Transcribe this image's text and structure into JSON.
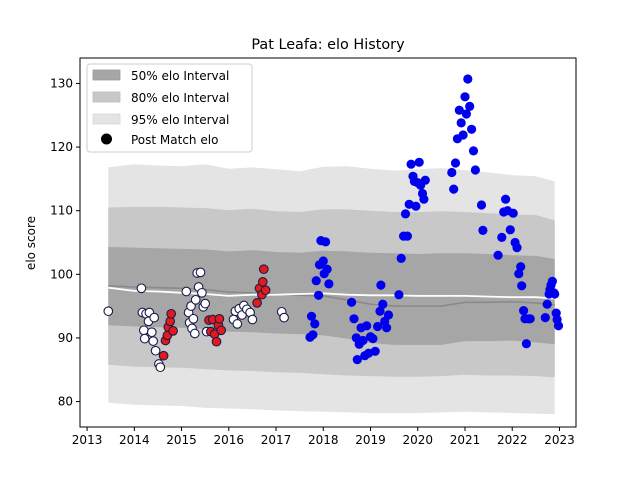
{
  "chart_data": {
    "type": "scatter",
    "title": "Pat Leafa: elo History",
    "xlabel": "",
    "ylabel": "elo score",
    "xlim": [
      2012.85,
      2023.35
    ],
    "ylim": [
      76,
      134
    ],
    "x_ticks": [
      2013,
      2014,
      2015,
      2016,
      2017,
      2018,
      2019,
      2020,
      2021,
      2022,
      2023
    ],
    "y_ticks": [
      80,
      90,
      100,
      110,
      120,
      130
    ],
    "grid": false,
    "legend": {
      "placement": "top-left",
      "entries": [
        "50% elo Interval",
        "80% elo Interval",
        "95% elo Interval",
        "Post Match elo"
      ]
    },
    "colors": {
      "band50": "#a6a6a6",
      "band80": "#c8c8c8",
      "band95": "#e4e4e4",
      "median_line": "#8a8a8a",
      "mean_line": "#ffffff",
      "point_white": "#ffffff",
      "point_red": "#e31a1c",
      "point_blue": "#0000ee",
      "point_edge_dark": "#1a1a4a"
    },
    "bands": {
      "x": [
        2013.45,
        2014.0,
        2014.5,
        2015.0,
        2015.5,
        2016.0,
        2016.5,
        2017.0,
        2017.5,
        2018.0,
        2018.5,
        2019.0,
        2019.5,
        2020.0,
        2020.5,
        2021.0,
        2021.5,
        2022.0,
        2022.5,
        2022.9
      ],
      "p95_high": [
        116.8,
        117.3,
        117.1,
        117.0,
        117.3,
        116.6,
        116.8,
        116.5,
        116.2,
        116.9,
        117.0,
        116.6,
        116.3,
        116.5,
        116.7,
        116.4,
        116.0,
        115.6,
        115.4,
        114.6
      ],
      "p80_high": [
        110.5,
        110.6,
        110.6,
        110.5,
        110.4,
        110.1,
        110.3,
        109.9,
        109.8,
        110.2,
        110.2,
        110.0,
        109.8,
        109.8,
        109.9,
        109.8,
        109.6,
        109.4,
        109.3,
        108.5
      ],
      "p50_high": [
        104.3,
        104.2,
        104.1,
        104.0,
        103.9,
        103.6,
        103.8,
        103.5,
        103.4,
        103.7,
        103.6,
        103.4,
        103.3,
        103.2,
        103.3,
        103.3,
        103.2,
        103.0,
        102.9,
        102.4
      ],
      "median": [
        98.2,
        98.0,
        97.9,
        97.8,
        97.6,
        97.2,
        97.1,
        96.9,
        96.7,
        96.6,
        96.0,
        95.3,
        95.0,
        95.0,
        95.0,
        95.6,
        95.6,
        95.7,
        95.5,
        95.2
      ],
      "mean": [
        97.9,
        97.4,
        97.3,
        97.1,
        96.9,
        96.6,
        96.8,
        96.8,
        96.9,
        97.0,
        96.8,
        96.7,
        96.7,
        96.6,
        96.6,
        96.6,
        96.5,
        96.4,
        96.4,
        96.2
      ],
      "p50_low": [
        92.0,
        91.8,
        91.7,
        91.6,
        91.4,
        91.0,
        90.9,
        90.7,
        90.6,
        90.4,
        89.9,
        89.2,
        88.9,
        88.9,
        88.9,
        89.5,
        89.5,
        89.6,
        89.3,
        89.0
      ],
      "p80_low": [
        85.8,
        85.5,
        85.4,
        85.3,
        85.1,
        84.9,
        84.8,
        84.6,
        84.5,
        84.3,
        84.1,
        84.0,
        83.9,
        83.9,
        84.0,
        84.2,
        84.1,
        84.1,
        84.0,
        83.8
      ],
      "p95_low": [
        79.8,
        79.5,
        79.4,
        79.3,
        79.0,
        78.9,
        78.8,
        78.6,
        78.5,
        78.4,
        78.3,
        78.2,
        78.2,
        78.2,
        78.3,
        78.4,
        78.3,
        78.2,
        78.1,
        78.0
      ]
    },
    "series": [
      {
        "color": "white",
        "points": [
          [
            2013.45,
            94.2
          ],
          [
            2014.15,
            97.8
          ],
          [
            2014.17,
            94.0
          ],
          [
            2014.2,
            91.2
          ],
          [
            2014.22,
            89.9
          ],
          [
            2014.25,
            93.8
          ],
          [
            2014.3,
            92.6
          ],
          [
            2014.32,
            94.0
          ],
          [
            2014.37,
            90.9
          ],
          [
            2014.4,
            89.5
          ],
          [
            2014.42,
            93.2
          ],
          [
            2014.45,
            88.0
          ],
          [
            2014.52,
            85.9
          ],
          [
            2014.55,
            85.4
          ],
          [
            2015.1,
            97.3
          ],
          [
            2015.15,
            94.0
          ],
          [
            2015.17,
            92.4
          ],
          [
            2015.2,
            95.0
          ],
          [
            2015.22,
            91.5
          ],
          [
            2015.25,
            93.0
          ],
          [
            2015.28,
            90.7
          ],
          [
            2015.3,
            96.0
          ],
          [
            2015.33,
            100.2
          ],
          [
            2015.36,
            98.0
          ],
          [
            2015.4,
            100.3
          ],
          [
            2015.43,
            97.1
          ],
          [
            2015.46,
            94.9
          ],
          [
            2015.5,
            95.4
          ],
          [
            2015.53,
            91.0
          ],
          [
            2016.1,
            92.9
          ],
          [
            2016.14,
            94.2
          ],
          [
            2016.18,
            92.2
          ],
          [
            2016.22,
            94.6
          ],
          [
            2016.28,
            93.6
          ],
          [
            2016.32,
            95.1
          ],
          [
            2016.38,
            94.5
          ],
          [
            2016.45,
            94.0
          ],
          [
            2016.5,
            92.9
          ],
          [
            2017.12,
            94.1
          ],
          [
            2017.17,
            93.2
          ]
        ]
      },
      {
        "color": "red",
        "points": [
          [
            2014.62,
            87.2
          ],
          [
            2014.66,
            89.6
          ],
          [
            2014.7,
            90.4
          ],
          [
            2014.72,
            91.7
          ],
          [
            2014.76,
            92.6
          ],
          [
            2014.78,
            93.8
          ],
          [
            2014.82,
            91.1
          ],
          [
            2015.58,
            92.8
          ],
          [
            2015.62,
            91.0
          ],
          [
            2015.66,
            92.9
          ],
          [
            2015.7,
            90.6
          ],
          [
            2015.74,
            89.4
          ],
          [
            2015.78,
            92.0
          ],
          [
            2015.8,
            93.0
          ],
          [
            2015.84,
            91.2
          ],
          [
            2016.6,
            95.5
          ],
          [
            2016.65,
            97.8
          ],
          [
            2016.7,
            96.8
          ],
          [
            2016.72,
            98.8
          ],
          [
            2016.74,
            100.8
          ],
          [
            2016.78,
            97.5
          ]
        ]
      },
      {
        "color": "blue",
        "points": [
          [
            2017.72,
            90.1
          ],
          [
            2017.75,
            93.4
          ],
          [
            2017.78,
            90.5
          ],
          [
            2017.82,
            92.2
          ],
          [
            2017.85,
            99.0
          ],
          [
            2017.9,
            96.7
          ],
          [
            2017.92,
            101.5
          ],
          [
            2017.95,
            105.3
          ],
          [
            2018.0,
            102.1
          ],
          [
            2018.02,
            100.1
          ],
          [
            2018.05,
            105.1
          ],
          [
            2018.08,
            100.8
          ],
          [
            2018.12,
            98.5
          ],
          [
            2018.6,
            95.6
          ],
          [
            2018.65,
            93.0
          ],
          [
            2018.7,
            90.0
          ],
          [
            2018.72,
            86.6
          ],
          [
            2018.76,
            89.0
          ],
          [
            2018.8,
            91.6
          ],
          [
            2018.84,
            89.6
          ],
          [
            2018.88,
            87.2
          ],
          [
            2018.92,
            91.9
          ],
          [
            2018.96,
            87.6
          ],
          [
            2019.0,
            90.2
          ],
          [
            2019.05,
            89.9
          ],
          [
            2019.1,
            87.9
          ],
          [
            2019.15,
            91.8
          ],
          [
            2019.2,
            94.2
          ],
          [
            2019.22,
            98.3
          ],
          [
            2019.26,
            95.3
          ],
          [
            2019.3,
            92.6
          ],
          [
            2019.34,
            91.6
          ],
          [
            2019.38,
            93.6
          ],
          [
            2019.6,
            96.8
          ],
          [
            2019.65,
            102.5
          ],
          [
            2019.7,
            106.0
          ],
          [
            2019.74,
            109.5
          ],
          [
            2019.78,
            106.0
          ],
          [
            2019.82,
            111.0
          ],
          [
            2019.86,
            117.3
          ],
          [
            2019.9,
            115.4
          ],
          [
            2019.93,
            114.6
          ],
          [
            2019.96,
            110.7
          ],
          [
            2020.0,
            114.4
          ],
          [
            2020.03,
            117.6
          ],
          [
            2020.06,
            114.0
          ],
          [
            2020.1,
            112.7
          ],
          [
            2020.13,
            111.8
          ],
          [
            2020.16,
            114.8
          ],
          [
            2020.72,
            116.0
          ],
          [
            2020.76,
            113.4
          ],
          [
            2020.8,
            117.5
          ],
          [
            2020.84,
            121.3
          ],
          [
            2020.88,
            125.8
          ],
          [
            2020.92,
            123.8
          ],
          [
            2020.96,
            121.9
          ],
          [
            2021.0,
            127.9
          ],
          [
            2021.03,
            125.2
          ],
          [
            2021.06,
            130.7
          ],
          [
            2021.1,
            126.4
          ],
          [
            2021.14,
            122.8
          ],
          [
            2021.18,
            119.4
          ],
          [
            2021.22,
            116.4
          ],
          [
            2021.35,
            110.9
          ],
          [
            2021.38,
            106.9
          ],
          [
            2021.7,
            103.0
          ],
          [
            2021.78,
            105.8
          ],
          [
            2021.82,
            109.8
          ],
          [
            2021.86,
            111.8
          ],
          [
            2021.9,
            110.0
          ],
          [
            2021.96,
            107.0
          ],
          [
            2022.02,
            109.6
          ],
          [
            2022.06,
            105.0
          ],
          [
            2022.1,
            104.2
          ],
          [
            2022.14,
            100.1
          ],
          [
            2022.18,
            101.2
          ],
          [
            2022.2,
            98.2
          ],
          [
            2022.24,
            94.3
          ],
          [
            2022.27,
            93.0
          ],
          [
            2022.3,
            89.1
          ],
          [
            2022.34,
            93.0
          ],
          [
            2022.38,
            93.0
          ],
          [
            2022.7,
            93.2
          ],
          [
            2022.74,
            95.3
          ],
          [
            2022.78,
            96.9
          ],
          [
            2022.8,
            97.6
          ],
          [
            2022.82,
            98.3
          ],
          [
            2022.85,
            98.9
          ],
          [
            2022.88,
            97.1
          ],
          [
            2022.9,
            96.9
          ],
          [
            2022.93,
            93.9
          ],
          [
            2022.95,
            92.9
          ],
          [
            2022.98,
            91.9
          ]
        ]
      }
    ]
  }
}
